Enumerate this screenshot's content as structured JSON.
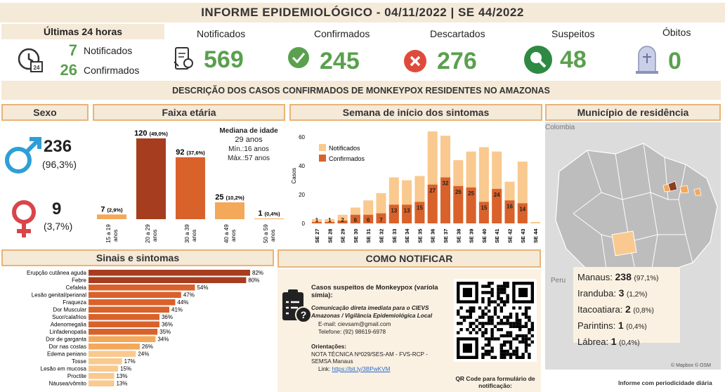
{
  "title": "INFORME EPIDEMIOLÓGICO - 04/11/2022 | SE 44/2022",
  "last24": {
    "heading": "Últimas 24 horas",
    "notified_value": "7",
    "notified_label": "Notificados",
    "confirmed_value": "26",
    "confirmed_label": "Confirmados"
  },
  "kpis": [
    {
      "label": "Notificados",
      "value": "569",
      "icon": "phone-report-icon"
    },
    {
      "label": "Confirmados",
      "value": "245",
      "icon": "check-circle-icon"
    },
    {
      "label": "Descartados",
      "value": "276",
      "icon": "x-circle-icon"
    },
    {
      "label": "Suspeitos",
      "value": "48",
      "icon": "magnifier-icon"
    },
    {
      "label": "Óbitos",
      "value": "0",
      "icon": "tombstone-icon"
    }
  ],
  "subtitle": "DESCRIÇÃO DOS CASOS CONFIRMADOS DE MONKEYPOX RESIDENTES NO AMAZONAS",
  "sexo": {
    "heading": "Sexo",
    "male_value": "236",
    "male_pct": "(96,3%)",
    "female_value": "9",
    "female_pct": "(3,7%)"
  },
  "faixa": {
    "heading": "Faixa etária",
    "median_title": "Mediana de idade",
    "median_value": "29 anos",
    "min": "Mín.:16 anos",
    "max": "Máx.:57 anos"
  },
  "semana": {
    "heading": "Semana de início dos sintomas",
    "legend_notified": "Notificados",
    "legend_confirmed": "Confirmados",
    "ylabel": "Casos"
  },
  "municipio": {
    "heading": "Município de residência",
    "map_label_top": "Colombia",
    "map_label_peru": "Peru",
    "attribution": "© Mapbox © OSM",
    "items": [
      {
        "name": "Manaus:",
        "value": "238",
        "pct": "(97,1%)"
      },
      {
        "name": "Iranduba:",
        "value": "3",
        "pct": "(1,2%)"
      },
      {
        "name": "Itacoatiara:",
        "value": "2",
        "pct": "(0,8%)"
      },
      {
        "name": "Parintins:",
        "value": "1",
        "pct": "(0,4%)"
      },
      {
        "name": "Lábrea:",
        "value": "1",
        "pct": "(0,4%)"
      }
    ]
  },
  "sinais": {
    "heading": "Sinais e sintomas"
  },
  "notificar": {
    "heading": "COMO NOTIFICAR",
    "case_def": "Casos suspeitos de Monkeypox (varíola símia):",
    "communication": "Comunicação direta imediata para o CIEVS Amazonas / Vigilância Epidemiológica Local",
    "email": "E-mail: cievsam@gmail.com",
    "phone": "Telefone: (92) 98619-6978",
    "orient_title": "Orientações:",
    "orient_text": "NOTA TÉCNICA Nº029/SES-AM - FVS-RCP - SEMSA Manaus",
    "link_label": "Link:",
    "link_url": "https://bit.ly/3BPwKVM",
    "qr_caption": "QR Code para formulário de notificação:"
  },
  "footer": "Informe com periodicidade diária",
  "colors": {
    "green": "#5aa04e",
    "dark": "#a63d1f",
    "mid": "#d9622b",
    "light": "#f4a85a",
    "pale": "#f9c98f",
    "band": "#f5e9d8",
    "border": "#e8b477"
  },
  "chart_data": [
    {
      "type": "bar",
      "title": "Faixa etária",
      "categories": [
        "15 a 19 anos",
        "20 a 29 anos",
        "30 a 39 anos",
        "40 a 49 anos",
        "50 a 59 anos"
      ],
      "values": [
        7,
        120,
        92,
        25,
        1
      ],
      "labels": [
        "7",
        "120",
        "92",
        "25",
        "1"
      ],
      "pcts": [
        "(2,9%)",
        "(49,0%)",
        "(37,6%)",
        "(10,2%)",
        "(0,4%)"
      ]
    },
    {
      "type": "bar",
      "title": "Semana de início dos sintomas",
      "ylabel": "Casos",
      "ylim": [
        0,
        65
      ],
      "yticks": [
        0,
        20,
        40,
        60
      ],
      "categories": [
        "SE 27",
        "SE 28",
        "SE 29",
        "SE 30",
        "SE 31",
        "SE 32",
        "SE 33",
        "SE 34",
        "SE 35",
        "SE 36",
        "SE 37",
        "SE 38",
        "SE 39",
        "SE 40",
        "SE 41",
        "SE 42",
        "SE 43",
        "SE 44"
      ],
      "series": [
        {
          "name": "Notificados",
          "values": [
            3,
            3,
            6,
            11,
            16,
            21,
            32,
            30,
            33,
            64,
            61,
            44,
            50,
            53,
            50,
            29,
            43,
            1
          ]
        },
        {
          "name": "Confirmados",
          "values": [
            1,
            1,
            2,
            6,
            6,
            7,
            13,
            13,
            15,
            27,
            32,
            26,
            25,
            15,
            24,
            16,
            14,
            0
          ]
        }
      ]
    },
    {
      "type": "bar",
      "title": "Sinais e sintomas",
      "categories": [
        "Erupção cutânea aguda",
        "Febre",
        "Cefaleia",
        "Lesão genital/perianal",
        "Fraqueza",
        "Dor Muscular",
        "Suor/calafrios",
        "Adenomegalia",
        "Linfadenopatia",
        "Dor de garganta",
        "Dor nas costas",
        "Edema peniano",
        "Tosse",
        "Lesão em mucosa",
        "Proctite",
        "Náusea/vômito"
      ],
      "values": [
        82,
        80,
        54,
        47,
        44,
        41,
        36,
        36,
        35,
        34,
        26,
        24,
        17,
        15,
        13,
        13
      ],
      "labels": [
        "82%",
        "80%",
        "54%",
        "47%",
        "44%",
        "41%",
        "36%",
        "36%",
        "35%",
        "34%",
        "26%",
        "24%",
        "17%",
        "15%",
        "13%",
        "13%"
      ]
    }
  ]
}
